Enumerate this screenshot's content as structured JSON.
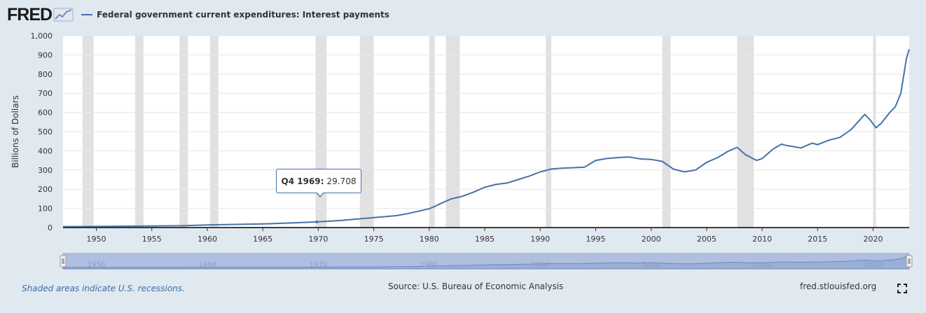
{
  "header": {
    "logo": "FRED",
    "logo_icon": "fred-chart-icon",
    "series_label": "Federal government current expenditures: Interest payments"
  },
  "tooltip": {
    "period": "Q4 1969:",
    "value": "29.708",
    "x": 1969.875
  },
  "footer": {
    "recession_note": "Shaded areas indicate U.S. recessions.",
    "source": "Source: U.S. Bureau of Economic Analysis",
    "site": "fred.stlouisfed.org",
    "fullscreen_icon": "fullscreen-icon"
  },
  "colors": {
    "background": "#e1e9f0",
    "plot": "#ffffff",
    "line": "#4572a7",
    "recession": "#e1e1e1",
    "navigator": "#aebfe0"
  },
  "chart_data": {
    "type": "line",
    "ylabel": "Billions of Dollars",
    "ylim": [
      0,
      1000
    ],
    "xlim": [
      1947,
      2023.25
    ],
    "yticks": [
      0,
      100,
      200,
      300,
      400,
      500,
      600,
      700,
      800,
      900,
      1000
    ],
    "ytick_labels": [
      "0",
      "100",
      "200",
      "300",
      "400",
      "500",
      "600",
      "700",
      "800",
      "900",
      "1,000"
    ],
    "xticks": [
      1950,
      1955,
      1960,
      1965,
      1970,
      1975,
      1980,
      1985,
      1990,
      1995,
      2000,
      2005,
      2010,
      2015,
      2020
    ],
    "navigator_ticks": [
      1950,
      1960,
      1970,
      1980,
      1990,
      2000,
      2010,
      2020
    ],
    "recessions": [
      [
        1948.75,
        1949.75
      ],
      [
        1953.5,
        1954.25
      ],
      [
        1957.5,
        1958.25
      ],
      [
        1960.25,
        1961.0
      ],
      [
        1969.75,
        1970.75
      ],
      [
        1973.75,
        1975.0
      ],
      [
        1980.0,
        1980.5
      ],
      [
        1981.5,
        1982.75
      ],
      [
        1990.5,
        1991.0
      ],
      [
        2001.0,
        2001.75
      ],
      [
        2007.75,
        2009.25
      ],
      [
        2020.0,
        2020.25
      ]
    ],
    "series": [
      {
        "x": [
          1947,
          1950,
          1955,
          1958,
          1960,
          1965,
          1968,
          1969.875,
          1972,
          1974,
          1975,
          1977,
          1978,
          1979,
          1980,
          1980.5,
          1981,
          1982,
          1983,
          1984,
          1985,
          1986,
          1987,
          1988,
          1989,
          1990,
          1991,
          1992,
          1993,
          1994,
          1995,
          1996,
          1997,
          1998,
          1999,
          2000,
          2001,
          2002,
          2003,
          2004,
          2005,
          2006,
          2007,
          2007.75,
          2008.5,
          2009.5,
          2010,
          2011,
          2011.75,
          2012,
          2013,
          2013.5,
          2014.5,
          2015,
          2016,
          2017,
          2018,
          2019.25,
          2019.75,
          2020.25,
          2020.75,
          2021.5,
          2022,
          2022.5,
          2022.75,
          2023,
          2023.25
        ],
        "y": [
          5,
          6,
          8,
          10,
          14,
          19,
          25,
          29.708,
          37,
          47,
          52,
          62,
          72,
          85,
          98,
          110,
          125,
          150,
          163,
          185,
          210,
          225,
          232,
          250,
          268,
          290,
          305,
          310,
          312,
          315,
          350,
          360,
          365,
          368,
          358,
          355,
          345,
          305,
          290,
          300,
          340,
          365,
          400,
          418,
          380,
          350,
          360,
          410,
          435,
          430,
          420,
          415,
          440,
          432,
          455,
          470,
          510,
          590,
          560,
          520,
          545,
          600,
          630,
          700,
          790,
          880,
          930
        ]
      }
    ]
  }
}
